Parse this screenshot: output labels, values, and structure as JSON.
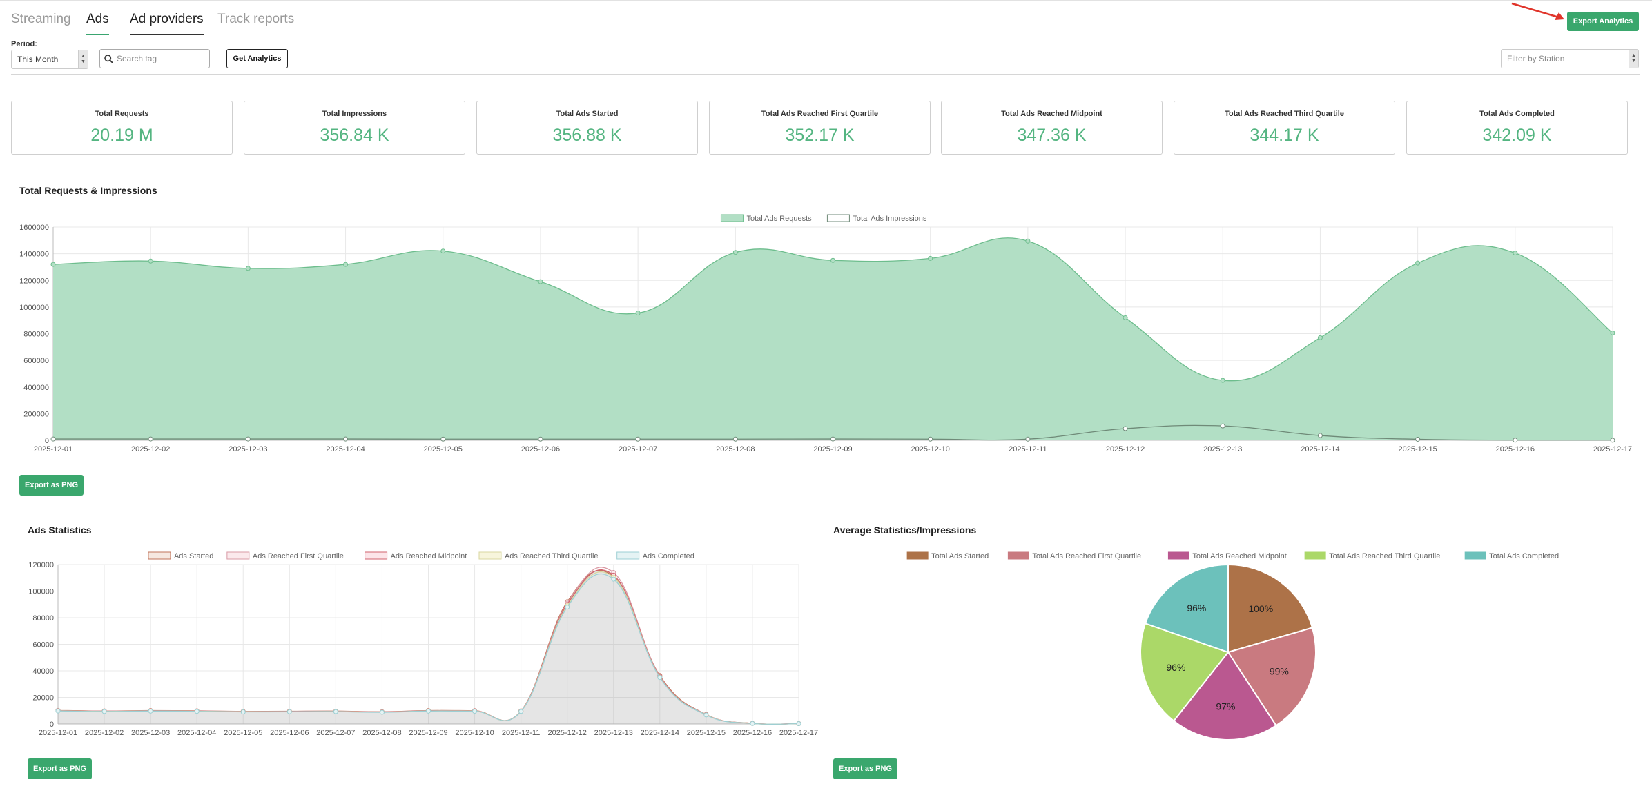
{
  "tabs": [
    {
      "label": "Streaming"
    },
    {
      "label": "Ads"
    },
    {
      "label": "Ad providers"
    },
    {
      "label": "Track reports"
    }
  ],
  "export_analytics_label": "Export Analytics",
  "filters": {
    "period_label": "Period:",
    "period_value": "This Month",
    "search_placeholder": "Search tag",
    "get_analytics_label": "Get Analytics",
    "station_placeholder": "Filter by Station"
  },
  "stats": [
    {
      "title": "Total Requests",
      "value": "20.19 M"
    },
    {
      "title": "Total Impressions",
      "value": "356.84 K"
    },
    {
      "title": "Total Ads Started",
      "value": "356.88 K"
    },
    {
      "title": "Total Ads Reached First Quartile",
      "value": "352.17 K"
    },
    {
      "title": "Total Ads Reached Midpoint",
      "value": "347.36 K"
    },
    {
      "title": "Total Ads Reached Third Quartile",
      "value": "344.17 K"
    },
    {
      "title": "Total Ads Completed",
      "value": "342.09 K"
    }
  ],
  "export_png_label": "Export as PNG",
  "colors": {
    "accent": "#3aa76d",
    "area_fill": "#b2dfc5",
    "area_line": "#6dbd8d"
  },
  "chart_data": [
    {
      "type": "area",
      "title": "Total Requests & Impressions",
      "x": [
        "2025-12-01",
        "2025-12-02",
        "2025-12-03",
        "2025-12-04",
        "2025-12-05",
        "2025-12-06",
        "2025-12-07",
        "2025-12-08",
        "2025-12-09",
        "2025-12-10",
        "2025-12-11",
        "2025-12-12",
        "2025-12-13",
        "2025-12-14",
        "2025-12-15",
        "2025-12-16",
        "2025-12-17"
      ],
      "series": [
        {
          "name": "Total Ads Requests",
          "values": [
            1320000,
            1345000,
            1290000,
            1320000,
            1420000,
            1190000,
            955000,
            1410000,
            1350000,
            1365000,
            1495000,
            920000,
            450000,
            770000,
            1330000,
            1405000,
            805000
          ],
          "color": "#b2dfc5",
          "stroke": "#6dbd8d"
        },
        {
          "name": "Total Ads Impressions",
          "values": [
            10000,
            10000,
            10000,
            10000,
            9000,
            9000,
            9000,
            9000,
            10000,
            9000,
            9000,
            88000,
            108000,
            36000,
            8000,
            1000,
            500
          ],
          "color": "#ffffff",
          "stroke": "#6f8a78"
        }
      ],
      "ylim": [
        0,
        1600000
      ],
      "yticks": [
        0,
        200000,
        400000,
        600000,
        800000,
        1000000,
        1200000,
        1400000,
        1600000
      ],
      "legend": "top-center",
      "grid": true
    },
    {
      "type": "line",
      "title": "Ads Statistics",
      "x": [
        "2025-12-01",
        "2025-12-02",
        "2025-12-03",
        "2025-12-04",
        "2025-12-05",
        "2025-12-06",
        "2025-12-07",
        "2025-12-08",
        "2025-12-09",
        "2025-12-10",
        "2025-12-11",
        "2025-12-12",
        "2025-12-13",
        "2025-12-14",
        "2025-12-15",
        "2025-12-16",
        "2025-12-17"
      ],
      "series": [
        {
          "name": "Ads Started",
          "values": [
            10200,
            9800,
            10100,
            9900,
            9500,
            9600,
            9700,
            9200,
            10100,
            10000,
            9800,
            92000,
            111000,
            36500,
            7200,
            500,
            300
          ],
          "color": "#f6e8e0",
          "stroke": "#c0735a"
        },
        {
          "name": "Ads Reached First Quartile",
          "values": [
            10100,
            9700,
            10000,
            9800,
            9400,
            9500,
            9600,
            9100,
            10000,
            9900,
            9700,
            91000,
            114000,
            36000,
            7100,
            500,
            300
          ],
          "color": "#fbe9ec",
          "stroke": "#d99aa5"
        },
        {
          "name": "Ads Reached Midpoint",
          "values": [
            10000,
            9600,
            9900,
            9700,
            9300,
            9400,
            9500,
            9000,
            9900,
            9800,
            9600,
            90000,
            112000,
            35500,
            7000,
            450,
            280
          ],
          "color": "#fce5e9",
          "stroke": "#d0626d"
        },
        {
          "name": "Ads Reached Third Quartile",
          "values": [
            9900,
            9500,
            9800,
            9600,
            9200,
            9300,
            9400,
            8900,
            9800,
            9700,
            9500,
            89000,
            110500,
            35200,
            6900,
            420,
            260
          ],
          "color": "#f7f5dc",
          "stroke": "#d9d7a0"
        },
        {
          "name": "Ads Completed",
          "values": [
            9800,
            9400,
            9700,
            9500,
            9100,
            9200,
            9300,
            8800,
            9700,
            9600,
            9400,
            88000,
            109000,
            35000,
            6800,
            400,
            250
          ],
          "color": "#e5f3f4",
          "stroke": "#9ccfd4"
        }
      ],
      "ylim": [
        0,
        120000
      ],
      "yticks": [
        0,
        20000,
        40000,
        60000,
        80000,
        100000,
        120000
      ],
      "legend": "top-center",
      "grid": true
    },
    {
      "type": "pie",
      "title": "Average Statistics/Impressions",
      "categories": [
        "Total Ads Started",
        "Total Ads Reached First Quartile",
        "Total Ads Reached Midpoint",
        "Total Ads Reached Third Quartile",
        "Total Ads Completed"
      ],
      "values": [
        100,
        99,
        97,
        96,
        96
      ],
      "labels": [
        "100%",
        "99%",
        "97%",
        "96%",
        "96%"
      ],
      "colors": [
        "#ad7248",
        "#c97a80",
        "#ba5890",
        "#abd868",
        "#6cc1bb"
      ],
      "legend": "top-center"
    }
  ]
}
